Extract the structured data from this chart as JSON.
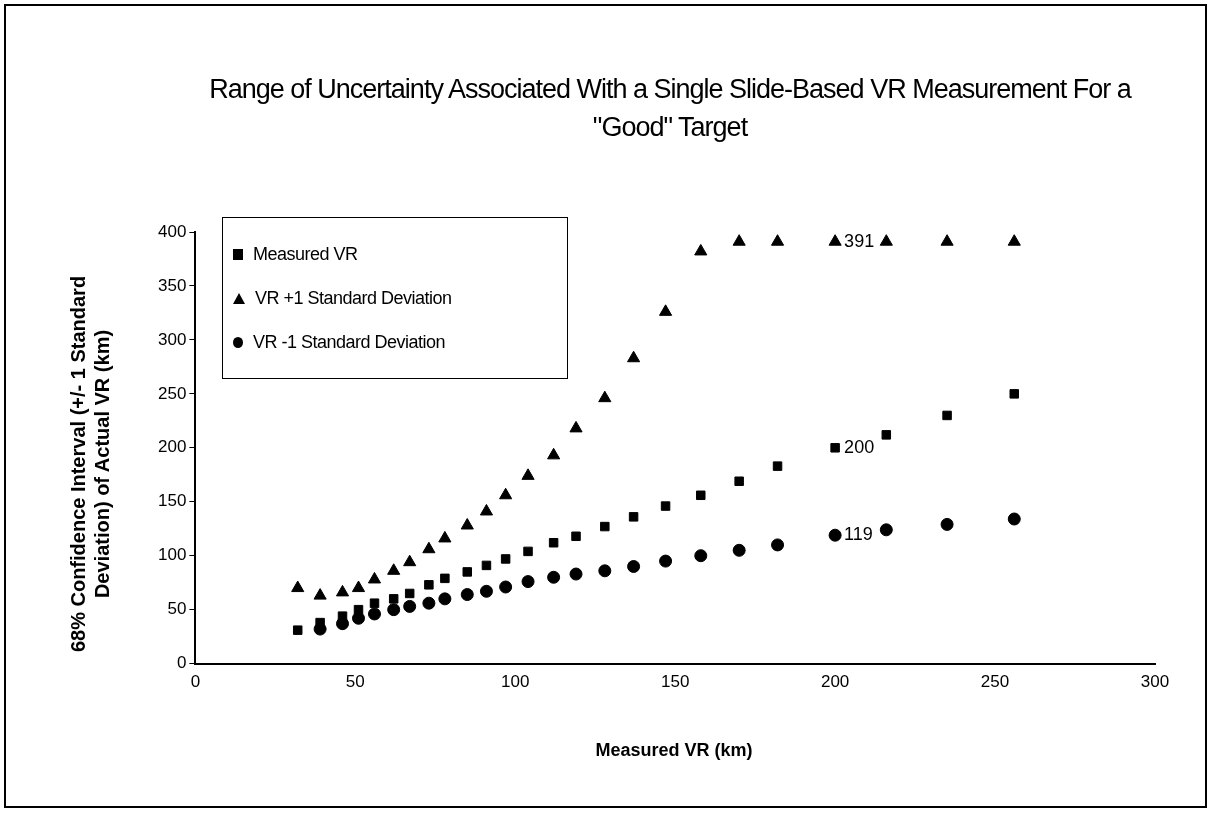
{
  "chart_data": {
    "type": "scatter",
    "title": "Range of Uncertainty Associated With a Single Slide-Based VR Measurement For a \"Good\" Target",
    "xlabel": "Measured VR (km)",
    "ylabel": "68% Confidence Interval (+/- 1 Standard Deviation) of Actual VR (km)",
    "x": [
      32,
      39,
      46,
      51,
      56,
      62,
      67,
      73,
      78,
      85,
      91,
      97,
      104,
      112,
      119,
      128,
      137,
      147,
      158,
      170,
      182,
      200,
      216,
      235,
      256
    ],
    "series": [
      {
        "name": "Measured VR",
        "color": "#000000",
        "marker": "square",
        "values": [
          31,
          38,
          44,
          50,
          56,
          60,
          65,
          73,
          79,
          85,
          91,
          97,
          104,
          112,
          118,
          127,
          136,
          146,
          156,
          169,
          183,
          200,
          212,
          230,
          250
        ],
        "value_labels": [
          null,
          null,
          null,
          null,
          null,
          null,
          null,
          null,
          null,
          null,
          null,
          null,
          null,
          null,
          null,
          null,
          null,
          null,
          null,
          null,
          null,
          "200",
          null,
          null,
          null
        ]
      },
      {
        "name": "VR +1 Standard Deviation",
        "color": "#000000",
        "marker": "triangle",
        "values": [
          70,
          63,
          66,
          70,
          78,
          86,
          94,
          106,
          116,
          128,
          141,
          156,
          174,
          193,
          218,
          246,
          283,
          326,
          382,
          391,
          391,
          391,
          391,
          391,
          391
        ],
        "value_labels": [
          null,
          null,
          null,
          null,
          null,
          null,
          null,
          null,
          null,
          null,
          null,
          null,
          null,
          null,
          null,
          null,
          null,
          null,
          null,
          null,
          null,
          "391",
          null,
          null,
          null
        ]
      },
      {
        "name": "VR -1 Standard Deviation",
        "color": "#000000",
        "marker": "circle",
        "values": [
          null,
          32,
          37,
          42,
          46,
          50,
          53,
          56,
          60,
          64,
          67,
          71,
          76,
          80,
          83,
          86,
          90,
          95,
          100,
          105,
          110,
          119,
          124,
          129,
          134
        ],
        "value_labels": [
          null,
          null,
          null,
          null,
          null,
          null,
          null,
          null,
          null,
          null,
          null,
          null,
          null,
          null,
          null,
          null,
          null,
          null,
          null,
          null,
          null,
          "119",
          null,
          null,
          null
        ]
      }
    ],
    "xlim": [
      0,
      300
    ],
    "xticks": [
      0,
      50,
      100,
      150,
      200,
      250,
      300
    ],
    "ylim": [
      0,
      400
    ],
    "yticks": [
      0,
      50,
      100,
      150,
      200,
      250,
      300,
      350,
      400
    ],
    "grid": false,
    "legend": "top left"
  }
}
